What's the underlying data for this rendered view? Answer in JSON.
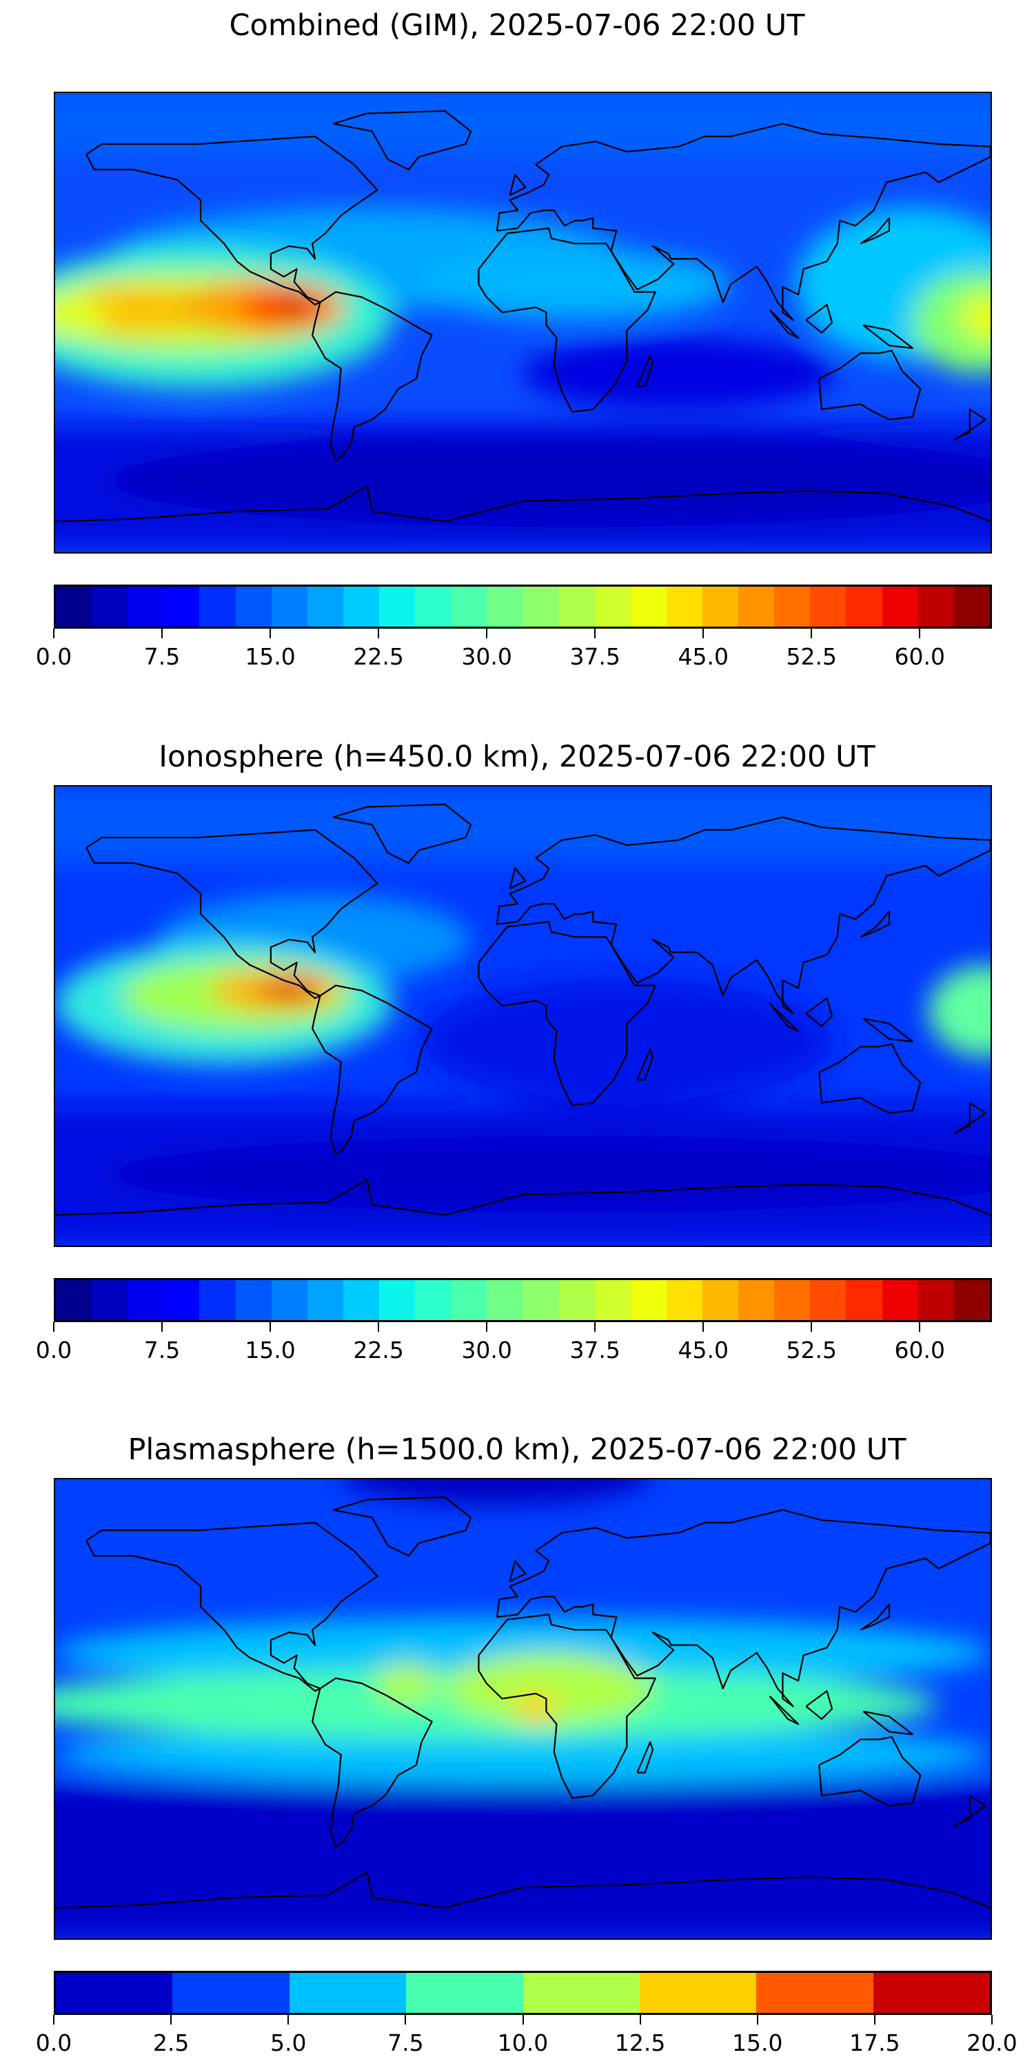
{
  "chart_data": [
    {
      "type": "heatmap",
      "title": "Combined (GIM), 2025-07-06 22:00 UT",
      "colorbar": {
        "range": [
          0,
          65
        ],
        "step": 2.5,
        "ticks": [
          "0.0",
          "7.5",
          "15.0",
          "22.5",
          "30.0",
          "37.5",
          "45.0",
          "52.5",
          "60.0"
        ],
        "tick_values": [
          0,
          7.5,
          15,
          22.5,
          30,
          37.5,
          45,
          52.5,
          60
        ],
        "colors": [
          "#00008f",
          "#0000bf",
          "#0000ef",
          "#0000ff",
          "#0030ff",
          "#0058ff",
          "#0080ff",
          "#00a4ff",
          "#00ccff",
          "#0cf4ec",
          "#2cffcc",
          "#4cffac",
          "#70ff88",
          "#90ff6c",
          "#b0ff48",
          "#d0ff2c",
          "#f0ff0c",
          "#ffe000",
          "#ffb800",
          "#ff9400",
          "#ff7000",
          "#ff4c00",
          "#ff2800",
          "#ef0000",
          "#bf0000",
          "#8f0000"
        ]
      },
      "features": "Peak ~60 over eastern Pacific near Central America (≈90W, 5N); elevated 40-50 across equatorial Pacific; low values at southern high latitudes"
    },
    {
      "type": "heatmap",
      "title": "Ionosphere  (h=450.0 km), 2025-07-06 22:00 UT",
      "colorbar": {
        "range": [
          0,
          65
        ],
        "step": 2.5,
        "ticks": [
          "0.0",
          "7.5",
          "15.0",
          "22.5",
          "30.0",
          "37.5",
          "45.0",
          "52.5",
          "60.0"
        ],
        "tick_values": [
          0,
          7.5,
          15,
          22.5,
          30,
          37.5,
          45,
          52.5,
          60
        ],
        "colors": [
          "#00008f",
          "#0000bf",
          "#0000ef",
          "#0000ff",
          "#0030ff",
          "#0058ff",
          "#0080ff",
          "#00a4ff",
          "#00ccff",
          "#0cf4ec",
          "#2cffcc",
          "#4cffac",
          "#70ff88",
          "#90ff6c",
          "#b0ff48",
          "#d0ff2c",
          "#f0ff0c",
          "#ffe000",
          "#ffb800",
          "#ff9400",
          "#ff7000",
          "#ff4c00",
          "#ff2800",
          "#ef0000",
          "#bf0000",
          "#8f0000"
        ]
      },
      "features": "Peak ~55 near Central America (≈90W, 10N); mostly 5-15 elsewhere"
    },
    {
      "type": "heatmap",
      "title": "Plasmasphere (h=1500.0 km), 2025-07-06 22:00 UT",
      "colorbar": {
        "range": [
          0,
          20
        ],
        "step": 2.5,
        "ticks": [
          "0.0",
          "2.5",
          "5.0",
          "7.5",
          "10.0",
          "12.5",
          "15.0",
          "17.5",
          "20.0"
        ],
        "tick_values": [
          0,
          2.5,
          5,
          7.5,
          10,
          12.5,
          15,
          17.5,
          20
        ],
        "colors": [
          "#0000c8",
          "#0040ff",
          "#00c0ff",
          "#48ffb0",
          "#b0ff48",
          "#ffd000",
          "#ff5a00",
          "#c80000"
        ]
      },
      "features": "Equatorial band 7.5-12.5; maximum 12.5-15 over central Africa; 0-2.5 at high latitudes"
    }
  ]
}
